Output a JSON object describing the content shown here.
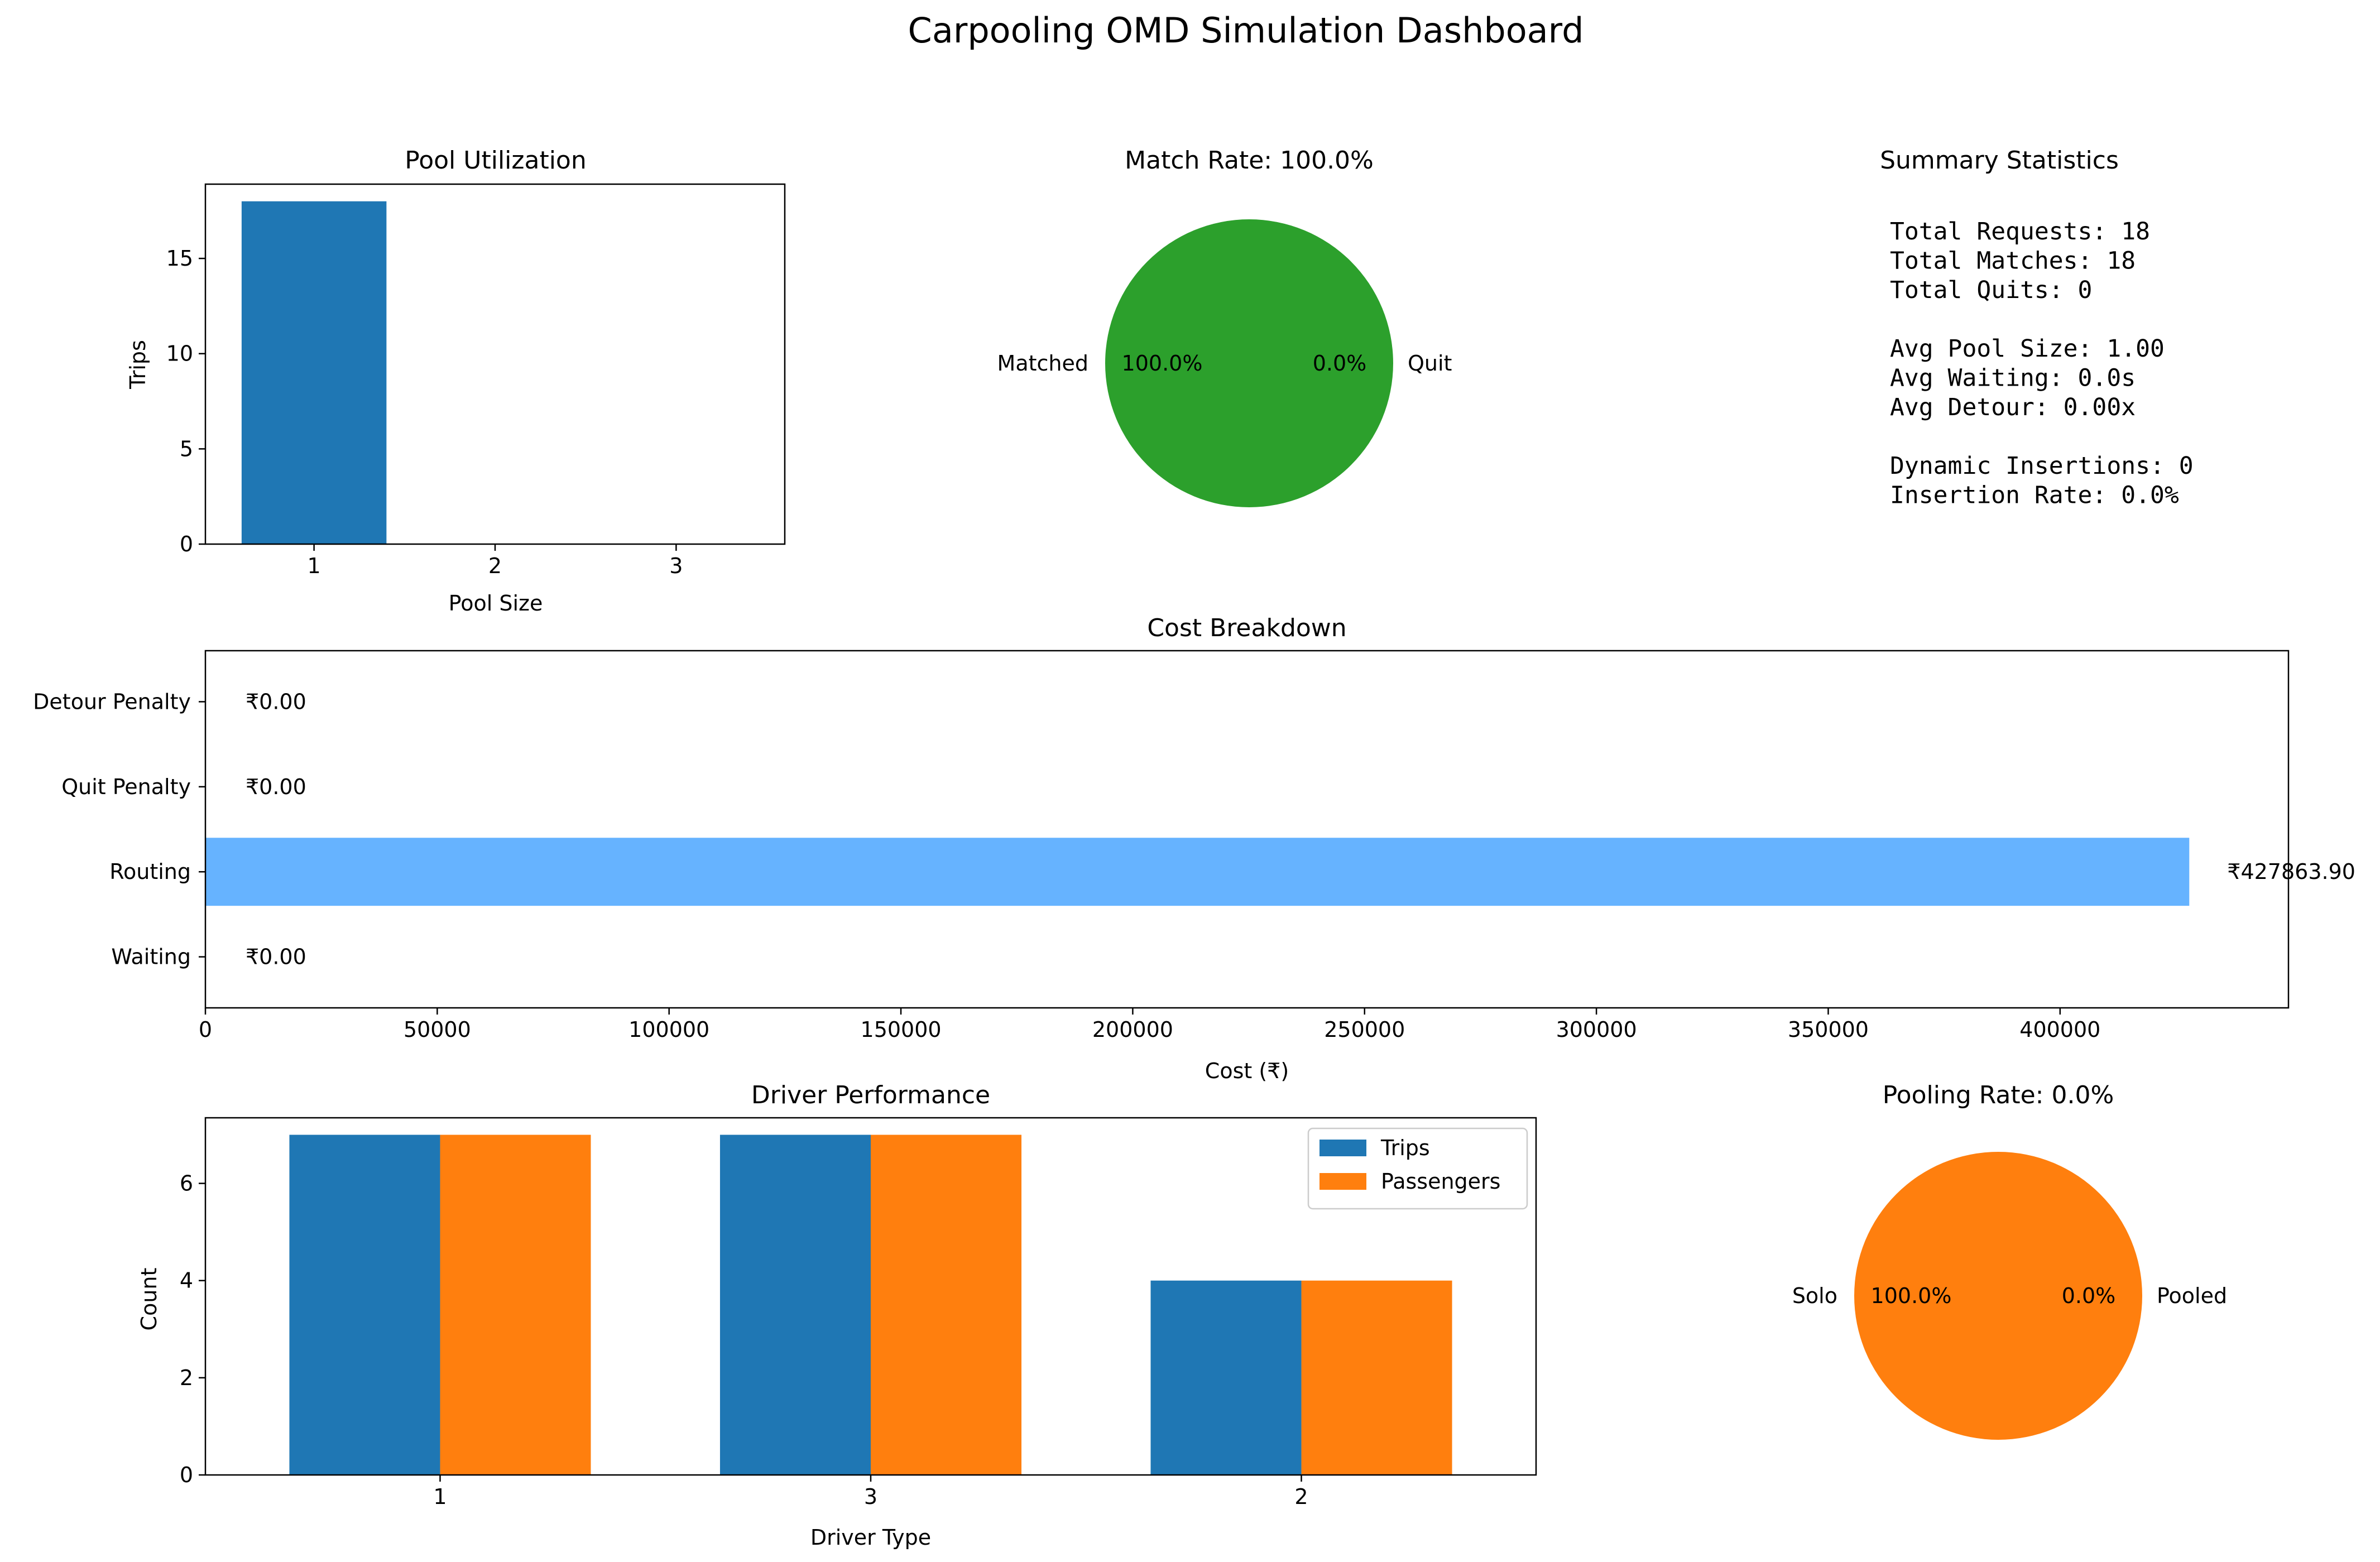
{
  "page": {
    "title": "Carpooling OMD Simulation Dashboard"
  },
  "colors": {
    "blue": "#1f77b4",
    "orange": "#ff7f0e",
    "green": "#2ca02c",
    "light_blue": "#66b3ff",
    "axis": "#000000"
  },
  "summary": {
    "title": "Summary Statistics",
    "lines": [
      "Total Requests: 18",
      "Total Matches: 18",
      "Total Quits: 0",
      "",
      "Avg Pool Size: 1.00",
      "Avg Waiting: 0.0s",
      "Avg Detour: 0.00x",
      "",
      "Dynamic Insertions: 0",
      "Insertion Rate: 0.0%"
    ]
  },
  "chart_data": [
    {
      "id": "pool_utilization",
      "type": "bar",
      "title": "Pool Utilization",
      "xlabel": "Pool Size",
      "ylabel": "Trips",
      "categories": [
        "1",
        "2",
        "3"
      ],
      "values": [
        18,
        0,
        0
      ],
      "ylim": [
        0,
        18.9
      ],
      "yticks": [
        0,
        5,
        10,
        15
      ],
      "color": "#1f77b4"
    },
    {
      "id": "match_rate",
      "type": "pie",
      "title": "Match Rate: 100.0%",
      "labels": [
        "Matched",
        "Quit"
      ],
      "values": [
        18,
        0
      ],
      "percent_labels": [
        "100.0%",
        "0.0%"
      ],
      "colors": [
        "#2ca02c",
        "#d62728"
      ]
    },
    {
      "id": "cost_breakdown",
      "type": "bar",
      "orientation": "horizontal",
      "title": "Cost Breakdown",
      "xlabel": "Cost (₹)",
      "ylabel": "",
      "categories": [
        "Waiting",
        "Routing",
        "Quit Penalty",
        "Detour Penalty"
      ],
      "values": [
        0.0,
        427863.9,
        0.0,
        0.0
      ],
      "value_labels": [
        "₹0.00",
        "₹427863.90",
        "₹0.00",
        "₹0.00"
      ],
      "xlim": [
        0,
        449257.1
      ],
      "xticks": [
        0,
        50000,
        100000,
        150000,
        200000,
        250000,
        300000,
        350000,
        400000
      ],
      "color": "#66b3ff"
    },
    {
      "id": "driver_performance",
      "type": "bar",
      "title": "Driver Performance",
      "xlabel": "Driver Type",
      "ylabel": "Count",
      "categories": [
        "1",
        "3",
        "2"
      ],
      "series": [
        {
          "name": "Trips",
          "values": [
            7,
            7,
            4
          ],
          "color": "#1f77b4"
        },
        {
          "name": "Passengers",
          "values": [
            7,
            7,
            4
          ],
          "color": "#ff7f0e"
        }
      ],
      "ylim": [
        0,
        7.35
      ],
      "yticks": [
        0,
        2,
        4,
        6
      ],
      "legend": "top-right"
    },
    {
      "id": "pooling_rate",
      "type": "pie",
      "title": "Pooling Rate: 0.0%",
      "labels": [
        "Solo",
        "Pooled"
      ],
      "values": [
        18,
        0
      ],
      "percent_labels": [
        "100.0%",
        "0.0%"
      ],
      "colors": [
        "#ff7f0e",
        "#1f77b4"
      ]
    }
  ]
}
